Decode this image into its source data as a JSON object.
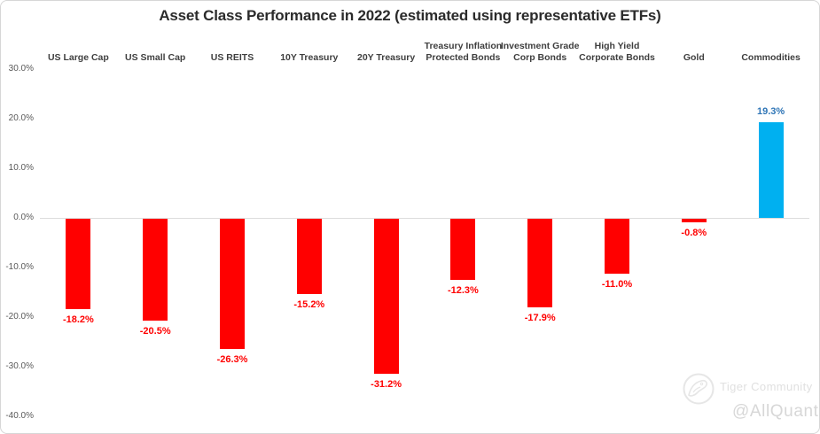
{
  "title": "Asset Class Performance in 2022 (estimated using representative ETFs)",
  "chart_data": {
    "type": "bar",
    "title": "Asset Class Performance in 2022 (estimated using representative ETFs)",
    "categories": [
      "US Large Cap",
      "US Small Cap",
      "US REITS",
      "10Y Treasury",
      "20Y Treasury",
      "Treasury Inflation Protected Bonds",
      "Investment Grade Corp Bonds",
      "High Yield Corporate Bonds",
      "Gold",
      "Commodities"
    ],
    "categories_wrapped": [
      [
        "US Large Cap"
      ],
      [
        "US Small Cap"
      ],
      [
        "US REITS"
      ],
      [
        "10Y Treasury"
      ],
      [
        "20Y Treasury"
      ],
      [
        "Treasury Inflation",
        "Protected Bonds"
      ],
      [
        "Investment Grade",
        "Corp Bonds"
      ],
      [
        "High Yield",
        "Corporate Bonds"
      ],
      [
        "Gold"
      ],
      [
        "Commodities"
      ]
    ],
    "values": [
      -18.2,
      -20.5,
      -26.3,
      -15.2,
      -31.2,
      -12.3,
      -17.9,
      -11.0,
      -0.8,
      19.3
    ],
    "value_labels": [
      "-18.2%",
      "-20.5%",
      "-26.3%",
      "-15.2%",
      "-31.2%",
      "-12.3%",
      "-17.9%",
      "-11.0%",
      "-0.8%",
      "19.3%"
    ],
    "xlabel": "",
    "ylabel": "",
    "ylim": [
      -40,
      30
    ],
    "ytick_step": 10,
    "ytick_labels": [
      "30.0%",
      "20.0%",
      "10.0%",
      "0.0%",
      "-10.0%",
      "-20.0%",
      "-30.0%",
      "-40.0%"
    ],
    "grid": false,
    "legend": false,
    "zero_line": true
  },
  "colors": {
    "negative_bar": "#ff0000",
    "positive_bar": "#00b0f0",
    "negative_label": "#ff0000",
    "positive_label": "#2e75b6",
    "axis_text": "#595959",
    "category_text": "#3f3f3f",
    "zero_line": "#dcdcdc"
  },
  "watermark": {
    "brand": "Tiger Community",
    "handle": "@AllQuant",
    "logo_icon": "tiger-logo-icon"
  }
}
